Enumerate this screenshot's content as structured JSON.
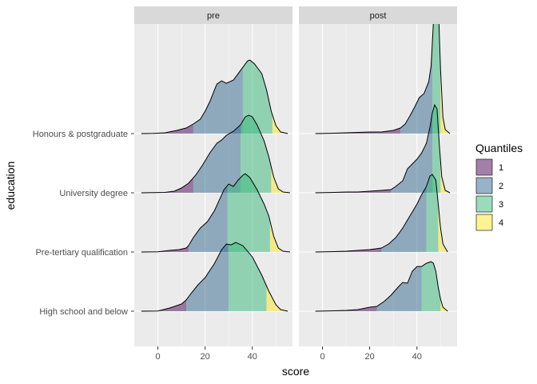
{
  "chart_data": {
    "type": "ridgeline",
    "xlabel": "score",
    "ylabel": "education",
    "xlim": [
      -10,
      57
    ],
    "x_ticks": [
      0,
      20,
      40
    ],
    "facets": [
      "pre",
      "post"
    ],
    "categories": [
      "High school and below",
      "Pre-tertiary qualification",
      "University degree",
      "Honours & postgraduate"
    ],
    "legend": {
      "title": "Quantiles",
      "position": "right",
      "entries": [
        {
          "label": "1",
          "color": "#440154"
        },
        {
          "label": "2",
          "color": "#31688E"
        },
        {
          "label": "3",
          "color": "#35B779"
        },
        {
          "label": "4",
          "color": "#FDE725"
        }
      ]
    },
    "quantile_alpha": 0.5,
    "grid": true,
    "panels": [
      {
        "facet": "pre",
        "series": [
          {
            "category": "High school and below",
            "quartiles": [
              12,
              30,
              46
            ],
            "density": [
              [
                -7,
                0
              ],
              [
                0,
                0.003
              ],
              [
                5,
                0.04
              ],
              [
                10,
                0.09
              ],
              [
                12,
                0.14
              ],
              [
                14,
                0.22
              ],
              [
                17,
                0.33
              ],
              [
                20,
                0.42
              ],
              [
                24,
                0.6
              ],
              [
                27,
                0.77
              ],
              [
                29,
                0.84
              ],
              [
                31,
                0.83
              ],
              [
                33,
                0.86
              ],
              [
                36,
                0.82
              ],
              [
                40,
                0.68
              ],
              [
                44,
                0.45
              ],
              [
                47,
                0.25
              ],
              [
                50,
                0.08
              ],
              [
                52,
                0.02
              ],
              [
                55,
                0
              ]
            ]
          },
          {
            "category": "Pre-tertiary qualification",
            "quartiles": [
              13,
              29.5,
              47.5
            ],
            "density": [
              [
                -7,
                0
              ],
              [
                0,
                0.003
              ],
              [
                5,
                0.02
              ],
              [
                9,
                0.03
              ],
              [
                12,
                0.05
              ],
              [
                13,
                0.08
              ],
              [
                15,
                0.18
              ],
              [
                18,
                0.3
              ],
              [
                21,
                0.38
              ],
              [
                24,
                0.52
              ],
              [
                26,
                0.65
              ],
              [
                28,
                0.78
              ],
              [
                30,
                0.85
              ],
              [
                32,
                0.82
              ],
              [
                34,
                0.9
              ],
              [
                36,
                0.96
              ],
              [
                37,
                0.98
              ],
              [
                39,
                0.93
              ],
              [
                42,
                0.78
              ],
              [
                45,
                0.6
              ],
              [
                47,
                0.45
              ],
              [
                49,
                0.2
              ],
              [
                51,
                0.05
              ],
              [
                53,
                0.01
              ],
              [
                56,
                0
              ]
            ]
          },
          {
            "category": "University degree",
            "quartiles": [
              15,
              35,
              48
            ],
            "density": [
              [
                -7,
                0
              ],
              [
                3,
                0.005
              ],
              [
                7,
                0.02
              ],
              [
                10,
                0.06
              ],
              [
                13,
                0.12
              ],
              [
                16,
                0.22
              ],
              [
                19,
                0.35
              ],
              [
                22,
                0.5
              ],
              [
                25,
                0.62
              ],
              [
                27,
                0.66
              ],
              [
                29,
                0.72
              ],
              [
                32,
                0.77
              ],
              [
                35,
                0.85
              ],
              [
                37,
                0.95
              ],
              [
                38.5,
                0.97
              ],
              [
                40,
                0.95
              ],
              [
                42,
                0.85
              ],
              [
                45,
                0.65
              ],
              [
                47,
                0.45
              ],
              [
                49,
                0.2
              ],
              [
                51,
                0.05
              ],
              [
                53,
                0.01
              ],
              [
                56,
                0
              ]
            ]
          },
          {
            "category": "Honours & postgraduate",
            "quartiles": [
              15,
              36,
              48.5
            ],
            "density": [
              [
                -7,
                0
              ],
              [
                -2,
                0.003
              ],
              [
                3,
                0.01
              ],
              [
                8,
                0.04
              ],
              [
                12,
                0.07
              ],
              [
                15,
                0.12
              ],
              [
                18,
                0.18
              ],
              [
                20,
                0.28
              ],
              [
                22,
                0.4
              ],
              [
                24,
                0.55
              ],
              [
                25,
                0.62
              ],
              [
                27,
                0.66
              ],
              [
                29,
                0.63
              ],
              [
                32,
                0.67
              ],
              [
                34,
                0.75
              ],
              [
                36,
                0.83
              ],
              [
                38,
                0.91
              ],
              [
                39,
                0.92
              ],
              [
                41,
                0.87
              ],
              [
                44,
                0.75
              ],
              [
                46,
                0.55
              ],
              [
                48,
                0.28
              ],
              [
                50,
                0.1
              ],
              [
                52,
                0.02
              ],
              [
                55,
                0
              ]
            ]
          }
        ]
      },
      {
        "facet": "post",
        "series": [
          {
            "category": "High school and below",
            "quartiles": [
              23,
              42,
              50
            ],
            "density": [
              [
                -3,
                0
              ],
              [
                5,
                0.005
              ],
              [
                10,
                0.01
              ],
              [
                15,
                0.02
              ],
              [
                20,
                0.05
              ],
              [
                23,
                0.06
              ],
              [
                26,
                0.12
              ],
              [
                29,
                0.2
              ],
              [
                32,
                0.3
              ],
              [
                34,
                0.36
              ],
              [
                36,
                0.35
              ],
              [
                38,
                0.5
              ],
              [
                40,
                0.56
              ],
              [
                42,
                0.56
              ],
              [
                44,
                0.6
              ],
              [
                46,
                0.62
              ],
              [
                47,
                0.6
              ],
              [
                48,
                0.5
              ],
              [
                49,
                0.3
              ],
              [
                50,
                0.15
              ],
              [
                51,
                0.05
              ],
              [
                53,
                0
              ]
            ]
          },
          {
            "category": "Pre-tertiary qualification",
            "quartiles": [
              25,
              44,
              49
            ],
            "density": [
              [
                -3,
                0
              ],
              [
                5,
                0.005
              ],
              [
                10,
                0.01
              ],
              [
                15,
                0.02
              ],
              [
                20,
                0.03
              ],
              [
                25,
                0.05
              ],
              [
                28,
                0.1
              ],
              [
                31,
                0.18
              ],
              [
                34,
                0.3
              ],
              [
                37,
                0.45
              ],
              [
                40,
                0.6
              ],
              [
                42,
                0.72
              ],
              [
                44,
                0.82
              ],
              [
                45.5,
                0.95
              ],
              [
                46.5,
                0.97
              ],
              [
                48,
                0.9
              ],
              [
                49,
                0.6
              ],
              [
                50,
                0.3
              ],
              [
                51,
                0.1
              ],
              [
                53,
                0
              ]
            ]
          },
          {
            "category": "University degree",
            "quartiles": [
              29,
              46.5,
              50
            ],
            "density": [
              [
                -3,
                0
              ],
              [
                5,
                0.005
              ],
              [
                10,
                0.01
              ],
              [
                15,
                0.01
              ],
              [
                20,
                0.02
              ],
              [
                25,
                0.03
              ],
              [
                29,
                0.04
              ],
              [
                31,
                0.08
              ],
              [
                34,
                0.15
              ],
              [
                36,
                0.3
              ],
              [
                38,
                0.36
              ],
              [
                40,
                0.42
              ],
              [
                42,
                0.5
              ],
              [
                44,
                0.62
              ],
              [
                45.5,
                0.82
              ],
              [
                46.5,
                1.0
              ],
              [
                47.5,
                1.1
              ],
              [
                48.5,
                1.05
              ],
              [
                49.5,
                0.6
              ],
              [
                50.5,
                0.2
              ],
              [
                52,
                0.03
              ],
              [
                54,
                0
              ]
            ]
          },
          {
            "category": "Honours & postgraduate",
            "quartiles": [
              33,
              46.5,
              50
            ],
            "density": [
              [
                -3,
                0
              ],
              [
                5,
                0.005
              ],
              [
                10,
                0.01
              ],
              [
                15,
                0.015
              ],
              [
                20,
                0.02
              ],
              [
                25,
                0.02
              ],
              [
                30,
                0.04
              ],
              [
                33,
                0.07
              ],
              [
                35,
                0.12
              ],
              [
                37,
                0.22
              ],
              [
                39,
                0.33
              ],
              [
                41,
                0.45
              ],
              [
                43,
                0.5
              ],
              [
                45,
                0.65
              ],
              [
                46,
                0.85
              ],
              [
                47,
                1.4
              ],
              [
                48,
                1.88
              ],
              [
                49,
                1.65
              ],
              [
                50,
                0.8
              ],
              [
                51,
                0.2
              ],
              [
                52,
                0.05
              ],
              [
                54,
                0
              ]
            ]
          }
        ]
      }
    ]
  }
}
